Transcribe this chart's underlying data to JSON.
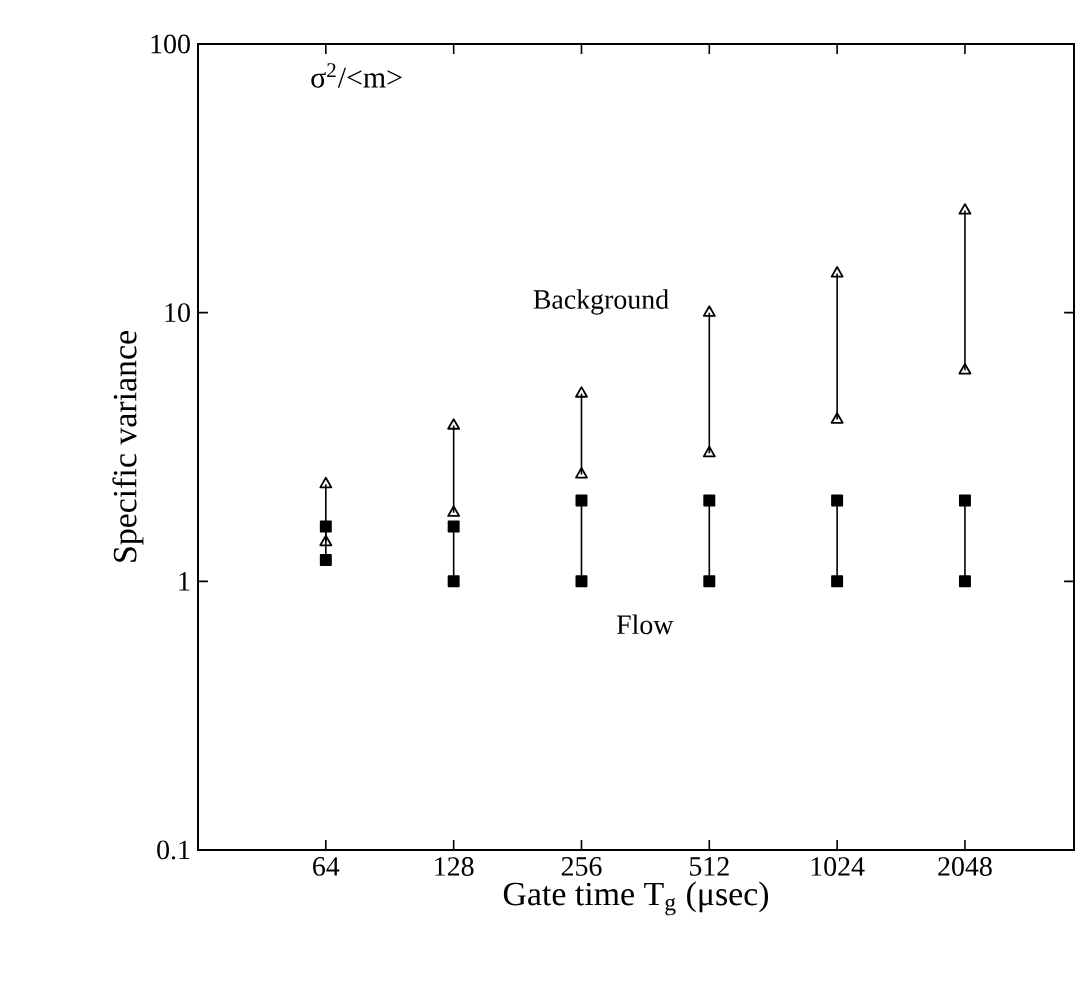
{
  "chart_data": {
    "type": "line",
    "xlabel": "Gate time     T$_{g}$ (μsec)",
    "ylabel": "Specific variance",
    "annotations": [
      "σ$^{2}$/<m>"
    ],
    "series": [
      {
        "name": "Background",
        "color": "#000000",
        "marker": "triangle",
        "x": [
          64,
          64,
          null,
          128,
          128,
          null,
          256,
          256,
          null,
          512,
          512,
          null,
          1024,
          1024,
          null,
          2048,
          2048
        ],
        "values": [
          2.3,
          1.4,
          null,
          3.8,
          1.8,
          null,
          5.0,
          2.5,
          null,
          10,
          3.0,
          null,
          14,
          4.0,
          null,
          24,
          6.1
        ]
      },
      {
        "name": "Flow",
        "color": "#000000",
        "marker": "square",
        "x": [
          64,
          64,
          null,
          128,
          128,
          null,
          256,
          256,
          null,
          512,
          512,
          null,
          1024,
          1024,
          null,
          2048,
          2048
        ],
        "values": [
          1.6,
          1.2,
          null,
          1.6,
          1.0,
          null,
          2.0,
          1.0,
          null,
          2.0,
          1.0,
          null,
          2.0,
          1.0,
          null,
          2.0,
          1.0
        ]
      }
    ],
    "log": "xy",
    "xlim": [
      32,
      3700
    ],
    "xticks": [
      64,
      128,
      256,
      512,
      1024,
      2048
    ],
    "ylim": [
      0.1,
      100
    ],
    "yticks": [
      0.1,
      1,
      10,
      100
    ],
    "grid": false,
    "legend": false,
    "line_style": "solid"
  }
}
